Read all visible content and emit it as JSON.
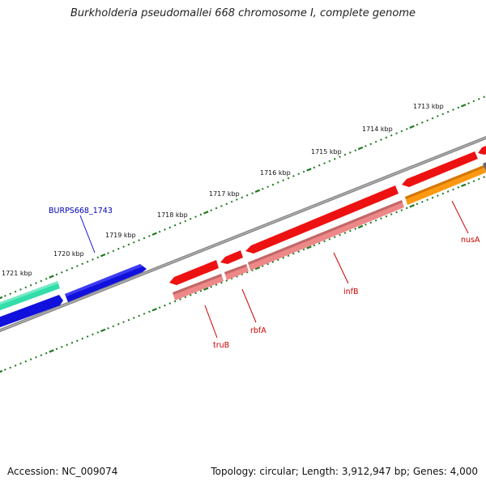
{
  "title": "Burkholderia pseudomallei 668 chromosome I, complete genome",
  "footer": {
    "accession": "Accession: NC_009074",
    "summary": "Topology: circular; Length: 3,912,947 bp; Genes: 4,000"
  },
  "colors": {
    "backbone": "#8a8a8a",
    "tick": "#1e7a1e",
    "red_gene": "#ee1111",
    "pink_gene": "#ee8888",
    "orange_gene": "#ff9911",
    "blue_gene": "#1111dd",
    "teal_gene": "#33ddaa",
    "red_label": "#cc0000",
    "blue_label": "#0000bb"
  },
  "ruler": [
    {
      "label": "1713 kbp"
    },
    {
      "label": "1714 kbp"
    },
    {
      "label": "1715 kbp"
    },
    {
      "label": "1716 kbp"
    },
    {
      "label": "1717 kbp"
    },
    {
      "label": "1718 kbp"
    },
    {
      "label": "1719 kbp"
    },
    {
      "label": "1720 kbp"
    },
    {
      "label": "1721 kbp"
    }
  ],
  "gene_labels": [
    {
      "text": "BURPS668_1743",
      "color": "blue"
    },
    {
      "text": "nusA",
      "color": "red"
    },
    {
      "text": "infB",
      "color": "red"
    },
    {
      "text": "rbfA",
      "color": "red"
    },
    {
      "text": "truB",
      "color": "red"
    }
  ]
}
